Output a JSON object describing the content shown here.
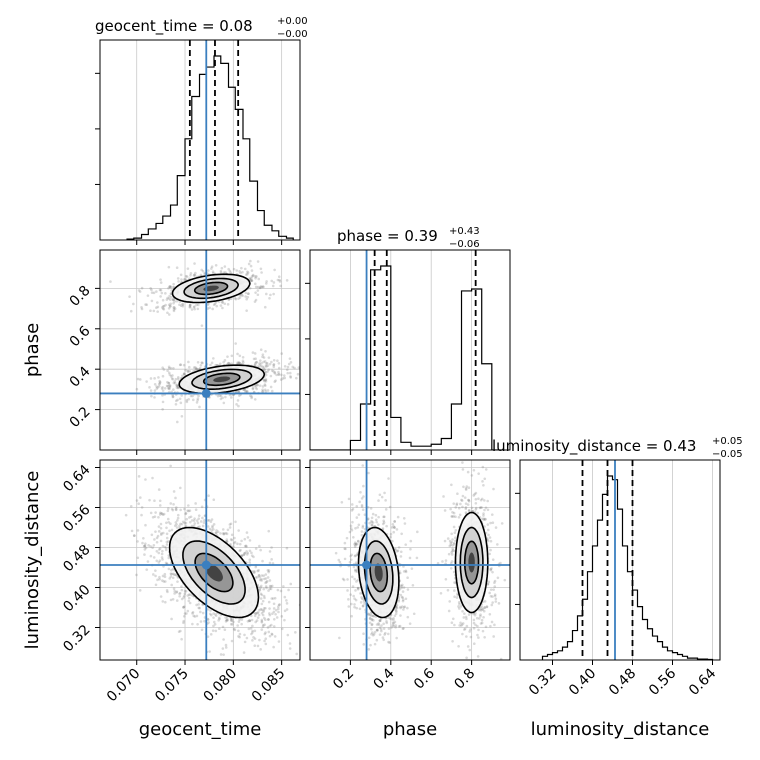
{
  "chart_data": {
    "type": "corner",
    "parameters": [
      "geocent_time",
      "phase",
      "luminosity_distance"
    ],
    "truths": {
      "geocent_time": 0.0772,
      "phase": 0.28,
      "luminosity_distance": 0.445
    },
    "axes": {
      "geocent_time": {
        "range": [
          0.0662,
          0.0869
        ],
        "ticks": [
          0.07,
          0.075,
          0.08,
          0.085
        ],
        "tick_labels": [
          "0.070",
          "0.075",
          "0.080",
          "0.085"
        ]
      },
      "phase": {
        "range": [
          0.0,
          0.99
        ],
        "ticks": [
          0.2,
          0.4,
          0.6,
          0.8
        ],
        "tick_labels": [
          "0.2",
          "0.4",
          "0.6",
          "0.8"
        ]
      },
      "luminosity_distance": {
        "range": [
          0.255,
          0.655
        ],
        "ticks": [
          0.32,
          0.4,
          0.48,
          0.56,
          0.64
        ],
        "tick_labels": [
          "0.32",
          "0.40",
          "0.48",
          "0.56",
          "0.64"
        ]
      }
    },
    "titles": {
      "geocent_time": {
        "label": "geocent_time = 0.08",
        "plus": "+0.00",
        "minus": "−0.00"
      },
      "phase": {
        "label": "phase = 0.39",
        "plus": "+0.43",
        "minus": "−0.06"
      },
      "luminosity_distance": {
        "label": "luminosity_distance = 0.43",
        "plus": "+0.05",
        "minus": "−0.05"
      }
    },
    "quantiles": {
      "geocent_time": [
        0.0755,
        0.0781,
        0.0805
      ],
      "phase": [
        0.32,
        0.38,
        0.82
      ],
      "luminosity_distance": [
        0.38,
        0.43,
        0.48
      ]
    },
    "histograms": {
      "geocent_time": {
        "edges": [
          0.069,
          0.0697,
          0.0705,
          0.0712,
          0.072,
          0.0727,
          0.0735,
          0.0742,
          0.075,
          0.0757,
          0.0765,
          0.0772,
          0.078,
          0.0787,
          0.0795,
          0.0802,
          0.081,
          0.0817,
          0.0825,
          0.0832,
          0.084,
          0.0847,
          0.0855,
          0.0862
        ],
        "counts": [
          0.005,
          0.01,
          0.03,
          0.06,
          0.09,
          0.13,
          0.19,
          0.35,
          0.55,
          0.78,
          0.9,
          0.94,
          1.0,
          0.96,
          0.83,
          0.71,
          0.55,
          0.32,
          0.16,
          0.08,
          0.05,
          0.02,
          0.01
        ]
      },
      "phase": {
        "edges": [
          0.0,
          0.05,
          0.1,
          0.15,
          0.2,
          0.25,
          0.3,
          0.35,
          0.4,
          0.45,
          0.5,
          0.55,
          0.6,
          0.65,
          0.7,
          0.75,
          0.8,
          0.85,
          0.9,
          0.95
        ],
        "counts": [
          0,
          0,
          0,
          0,
          0.05,
          0.24,
          0.94,
          0.96,
          0.17,
          0.04,
          0.02,
          0.02,
          0.03,
          0.06,
          0.24,
          0.83,
          0.84,
          0.45,
          0
        ]
      },
      "luminosity_distance": {
        "edges": [
          0.3,
          0.31,
          0.32,
          0.33,
          0.34,
          0.35,
          0.36,
          0.37,
          0.38,
          0.39,
          0.4,
          0.41,
          0.42,
          0.43,
          0.44,
          0.45,
          0.46,
          0.47,
          0.48,
          0.49,
          0.5,
          0.51,
          0.52,
          0.53,
          0.54,
          0.55,
          0.56,
          0.57,
          0.58,
          0.59,
          0.6,
          0.61,
          0.62,
          0.63,
          0.64
        ],
        "counts": [
          0.02,
          0.03,
          0.04,
          0.05,
          0.07,
          0.1,
          0.16,
          0.24,
          0.33,
          0.48,
          0.62,
          0.76,
          0.9,
          1.0,
          0.98,
          0.82,
          0.62,
          0.48,
          0.38,
          0.29,
          0.22,
          0.17,
          0.13,
          0.1,
          0.07,
          0.05,
          0.04,
          0.03,
          0.02,
          0.01,
          0.01,
          0.005,
          0.005,
          0.003
        ]
      }
    },
    "posterior_modes": {
      "geocent_time_phase": [
        {
          "x": 0.0777,
          "y": 0.8,
          "sx": 0.002,
          "sy": 0.035,
          "rho": 0.35,
          "weight": 0.45
        },
        {
          "x": 0.0788,
          "y": 0.35,
          "sx": 0.0022,
          "sy": 0.035,
          "rho": 0.35,
          "weight": 0.55
        }
      ],
      "geocent_time_luminosity_distance": [
        {
          "x": 0.078,
          "y": 0.43,
          "sx": 0.0023,
          "sy": 0.045,
          "rho": -0.55,
          "weight": 1.0
        }
      ],
      "phase_luminosity_distance": [
        {
          "x": 0.34,
          "y": 0.43,
          "sx": 0.05,
          "sy": 0.045,
          "rho": -0.2,
          "weight": 0.55
        },
        {
          "x": 0.8,
          "y": 0.45,
          "sx": 0.04,
          "sy": 0.05,
          "rho": 0.0,
          "weight": 0.45
        }
      ]
    },
    "grid": true
  }
}
